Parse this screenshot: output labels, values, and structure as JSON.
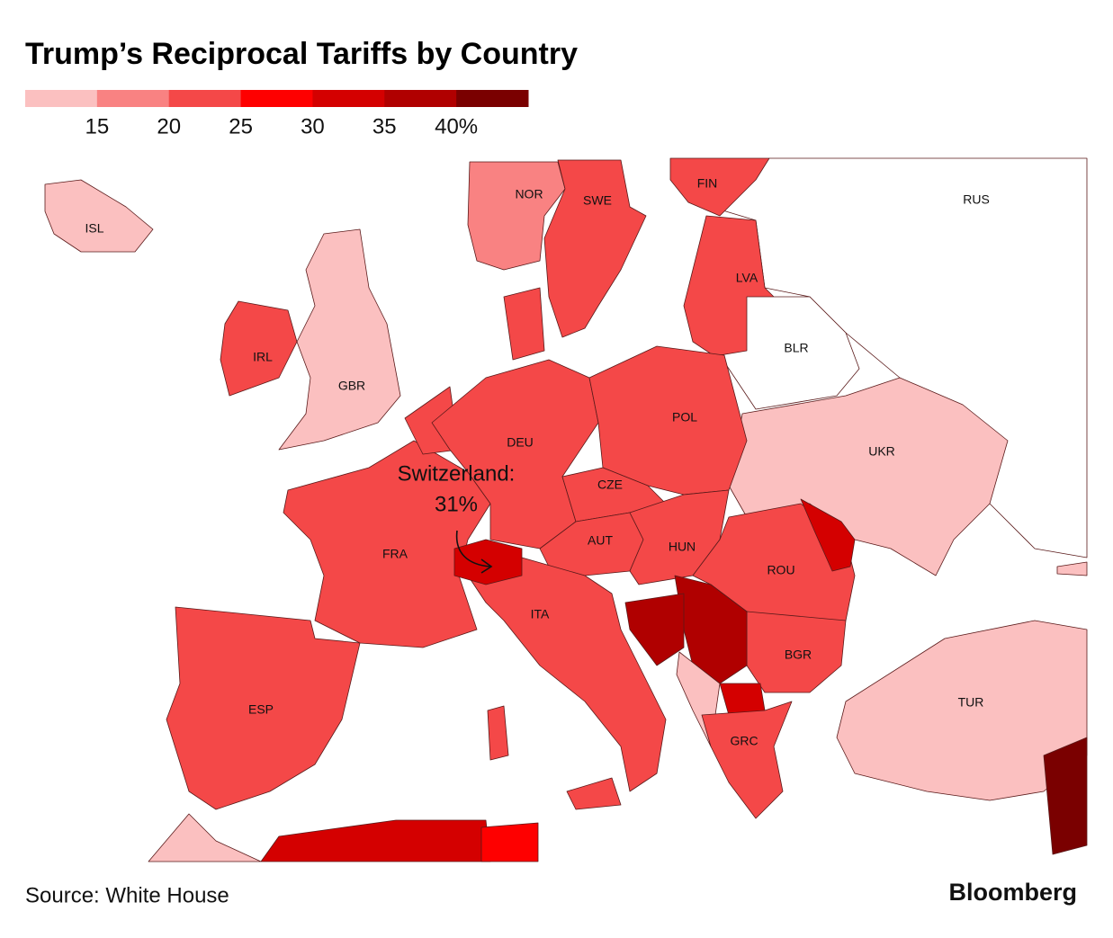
{
  "title": "Trump’s Reciprocal Tariffs by Country",
  "legend": {
    "colors": [
      "#fbc0c0",
      "#f98282",
      "#f44848",
      "#fe0000",
      "#d40000",
      "#b00000",
      "#7a0000"
    ],
    "xlim": [
      10,
      45
    ],
    "ticks": [
      15,
      20,
      25,
      30,
      35,
      {
        "value": 40,
        "label": "40%"
      }
    ]
  },
  "countries": [
    {
      "label": "ISL",
      "color": "#fbc0c0"
    },
    {
      "label": "NOR",
      "color": "#f98282"
    },
    {
      "label": "SWE",
      "color": "#f44848"
    },
    {
      "label": "FIN",
      "color": "#f44848"
    },
    {
      "label": "RUS",
      "color": "#ffffff"
    },
    {
      "label": "LVA",
      "color": "#f44848"
    },
    {
      "label": "BLR",
      "color": "#ffffff"
    },
    {
      "label": "IRL",
      "color": "#f44848"
    },
    {
      "label": "GBR",
      "color": "#fbc0c0"
    },
    {
      "label": "POL",
      "color": "#f44848"
    },
    {
      "label": "DEU",
      "color": "#f44848"
    },
    {
      "label": "UKR",
      "color": "#fbc0c0"
    },
    {
      "label": "CZE",
      "color": "#f44848"
    },
    {
      "label": "AUT",
      "color": "#f44848"
    },
    {
      "label": "HUN",
      "color": "#f44848"
    },
    {
      "label": "FRA",
      "color": "#f44848"
    },
    {
      "label": "ROU",
      "color": "#f44848"
    },
    {
      "label": "ITA",
      "color": "#f44848"
    },
    {
      "label": "BGR",
      "color": "#f44848"
    },
    {
      "label": "ESP",
      "color": "#f44848"
    },
    {
      "label": "TUR",
      "color": "#fbc0c0"
    },
    {
      "label": "GRC",
      "color": "#f44848"
    }
  ],
  "annotation": [
    "Switzerland:",
    "31%"
  ],
  "source": "Source: White House",
  "brand": "Bloomberg"
}
